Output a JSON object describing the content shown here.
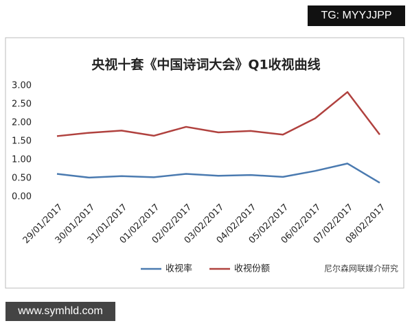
{
  "chart_data": {
    "type": "line",
    "title": "央视十套《中国诗词大会》Q1收视曲线",
    "categories": [
      "29/01/2017",
      "30/01/2017",
      "31/01/2017",
      "01/02/2017",
      "02/02/2017",
      "03/02/2017",
      "04/02/2017",
      "05/02/2017",
      "06/02/2017",
      "07/02/2017",
      "08/02/2017"
    ],
    "series": [
      {
        "name": "收视率",
        "color": "#4a7ab0",
        "values": [
          0.62,
          0.52,
          0.56,
          0.53,
          0.62,
          0.57,
          0.59,
          0.54,
          0.7,
          0.9,
          0.38
        ]
      },
      {
        "name": "收视份额",
        "color": "#b0413e",
        "values": [
          1.64,
          1.73,
          1.79,
          1.65,
          1.89,
          1.74,
          1.78,
          1.68,
          2.12,
          2.83,
          1.68
        ]
      }
    ],
    "ylim": [
      0,
      3
    ],
    "yticks": [
      {
        "value": 0,
        "label": "0.00"
      },
      {
        "value": 0.5,
        "label": "0.50"
      },
      {
        "value": 1,
        "label": "1.00"
      },
      {
        "value": 1.5,
        "label": "1.50"
      },
      {
        "value": 2,
        "label": "2.00"
      },
      {
        "value": 2.5,
        "label": "2.50"
      },
      {
        "value": 3,
        "label": "3.00"
      }
    ],
    "grid": false,
    "legend": "bottom"
  },
  "overlay": {
    "top_right": "TG: MYYJJPP",
    "bottom_left": "www.symhld.com",
    "source": "尼尔森网联媒介研究"
  }
}
